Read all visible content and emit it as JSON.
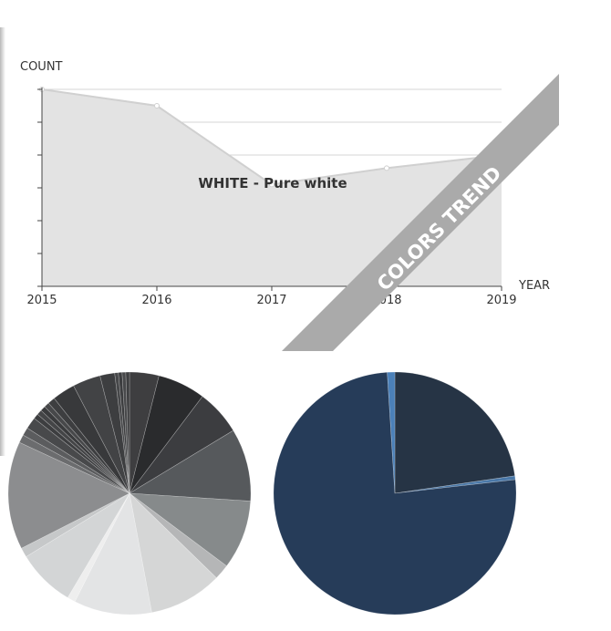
{
  "chart_data": [
    {
      "type": "area",
      "title": "",
      "xlabel": "YEAR",
      "ylabel": "COUNT",
      "x": [
        "2015",
        "2016",
        "2017",
        "2018",
        "2019"
      ],
      "series": [
        {
          "name": "WHITE - Pure white",
          "values": [
            6.0,
            5.5,
            3.1,
            3.6,
            4.0
          ],
          "color": "#e3e3e3",
          "line_color": "#d0d0d0"
        }
      ],
      "ylim": [
        0,
        6
      ],
      "y_ticks": 6,
      "grid": true,
      "y_tick_labels_shown": false,
      "annotation": "WHITE - Pure white",
      "ribbon_label": "COLORS TREND",
      "ribbon_color": "#aaaaaa"
    },
    {
      "type": "pie",
      "title": "",
      "slices": [
        {
          "value": 4.0,
          "color": "#3e3e40"
        },
        {
          "value": 6.5,
          "color": "#2a2b2d"
        },
        {
          "value": 6.2,
          "color": "#3c3d40"
        },
        {
          "value": 9.9,
          "color": "#56595c"
        },
        {
          "value": 9.4,
          "color": "#868a8b"
        },
        {
          "value": 2.1,
          "color": "#b5b6b7"
        },
        {
          "value": 10.0,
          "color": "#d5d6d6"
        },
        {
          "value": 10.6,
          "color": "#e3e4e5"
        },
        {
          "value": 1.1,
          "color": "#eeeeee"
        },
        {
          "value": 7.9,
          "color": "#d3d5d6"
        },
        {
          "value": 1.3,
          "color": "#c6c8c9"
        },
        {
          "value": 14.7,
          "color": "#8c8d8f"
        },
        {
          "value": 1.1,
          "color": "#6b6c6e"
        },
        {
          "value": 1.1,
          "color": "#5b5c5e"
        },
        {
          "value": 1.6,
          "color": "#48494b"
        },
        {
          "value": 0.7,
          "color": "#3d3e40"
        },
        {
          "value": 0.7,
          "color": "#444547"
        },
        {
          "value": 0.7,
          "color": "#3a3b3d"
        },
        {
          "value": 0.7,
          "color": "#47484a"
        },
        {
          "value": 1.0,
          "color": "#3d3e40"
        },
        {
          "value": 3.1,
          "color": "#38393b"
        },
        {
          "value": 3.8,
          "color": "#424345"
        },
        {
          "value": 2.0,
          "color": "#3d3e40"
        },
        {
          "value": 0.5,
          "color": "#47484a"
        },
        {
          "value": 0.5,
          "color": "#3c3d3f"
        },
        {
          "value": 0.5,
          "color": "#48494b"
        },
        {
          "value": 0.5,
          "color": "#3e3f41"
        }
      ]
    },
    {
      "type": "pie",
      "title": "",
      "slices": [
        {
          "value": 22.7,
          "color": "#263445"
        },
        {
          "value": 0.5,
          "color": "#4a78a8"
        },
        {
          "value": 75.8,
          "color": "#263c59"
        },
        {
          "value": 1.0,
          "color": "#4b80b8"
        }
      ]
    }
  ]
}
